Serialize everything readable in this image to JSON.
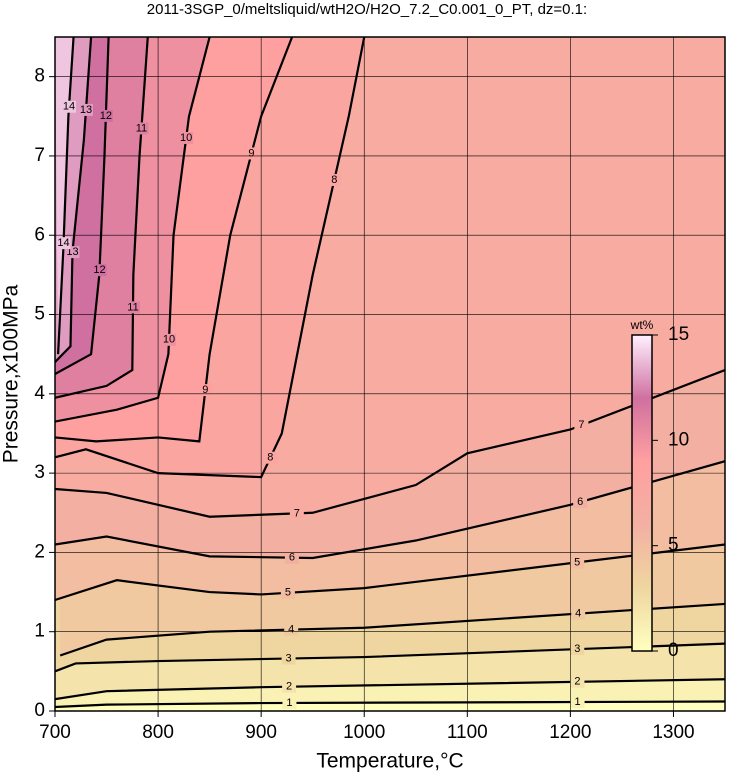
{
  "chart_data": {
    "type": "contour",
    "title": "2011-3SGP_0/meltsliquid/wtH2O/H2O_7.2_C0.001_0_PT, dz=0.1:",
    "x_label": "Temperature,°C",
    "y_label": "Pressure,x100MPa",
    "xlim": [
      700,
      1350
    ],
    "ylim": [
      0,
      8.5
    ],
    "xticks": [
      700,
      800,
      900,
      1000,
      1100,
      1200,
      1300
    ],
    "yticks": [
      0,
      1,
      2,
      3,
      4,
      5,
      6,
      7,
      8
    ],
    "grid": true,
    "contours": [
      {
        "level": 1,
        "x": [
          700,
          750,
          900,
          1350
        ],
        "y": [
          0.05,
          0.08,
          0.1,
          0.12
        ]
      },
      {
        "level": 2,
        "x": [
          700,
          750,
          900,
          1350
        ],
        "y": [
          0.15,
          0.25,
          0.3,
          0.4
        ]
      },
      {
        "level": 3,
        "x": [
          700,
          720,
          800,
          1000,
          1350
        ],
        "y": [
          0.5,
          0.6,
          0.63,
          0.68,
          0.85
        ]
      },
      {
        "level": 4,
        "x": [
          705,
          750,
          850,
          1000,
          1350
        ],
        "y": [
          0.7,
          0.9,
          1.0,
          1.05,
          1.35
        ]
      },
      {
        "level": 5,
        "x": [
          700,
          760,
          850,
          900,
          1000,
          1350
        ],
        "y": [
          1.4,
          1.65,
          1.5,
          1.47,
          1.55,
          2.1
        ]
      },
      {
        "level": 6,
        "x": [
          700,
          750,
          850,
          950,
          1050,
          1200,
          1350
        ],
        "y": [
          2.1,
          2.2,
          1.95,
          1.93,
          2.15,
          2.6,
          3.15
        ]
      },
      {
        "level": 7,
        "x": [
          700,
          750,
          850,
          950,
          1050,
          1100,
          1200,
          1350
        ],
        "y": [
          2.8,
          2.75,
          2.45,
          2.5,
          2.85,
          3.25,
          3.55,
          4.3
        ]
      },
      {
        "level": 8,
        "x": [
          700,
          730,
          800,
          900,
          920,
          950,
          985,
          1000
        ],
        "y": [
          3.2,
          3.3,
          3.0,
          2.95,
          3.5,
          5.5,
          7.5,
          8.5
        ]
      },
      {
        "level": 9,
        "x": [
          700,
          740,
          800,
          840,
          850,
          870,
          900,
          930
        ],
        "y": [
          3.45,
          3.4,
          3.45,
          3.4,
          4.5,
          6.0,
          7.5,
          8.5
        ]
      },
      {
        "level": 10,
        "x": [
          700,
          760,
          800,
          810,
          815,
          830,
          850
        ],
        "y": [
          3.65,
          3.8,
          3.95,
          4.5,
          6.0,
          7.5,
          8.5
        ]
      },
      {
        "level": 11,
        "x": [
          700,
          750,
          775,
          776,
          782,
          790
        ],
        "y": [
          3.95,
          4.1,
          4.3,
          5.5,
          7.0,
          8.5
        ]
      },
      {
        "level": 12,
        "x": [
          700,
          735,
          743,
          748,
          752
        ],
        "y": [
          4.25,
          4.5,
          5.5,
          7.0,
          8.5
        ]
      },
      {
        "level": 13,
        "x": [
          700,
          715,
          717,
          728,
          735
        ],
        "y": [
          4.4,
          4.6,
          5.8,
          7.2,
          8.5
        ]
      },
      {
        "level": 14,
        "x": [
          703,
          708,
          713,
          718
        ],
        "y": [
          4.5,
          5.8,
          7.5,
          8.5
        ]
      }
    ],
    "colorbar": {
      "title": "wt%",
      "lim": [
        0,
        15
      ],
      "ticks": [
        0,
        5,
        10,
        15
      ],
      "colors": [
        "#ffffc0",
        "#efd6a0",
        "#f3b0a2",
        "#ffa0a0",
        "#d070a0",
        "#fff0ff"
      ]
    }
  }
}
